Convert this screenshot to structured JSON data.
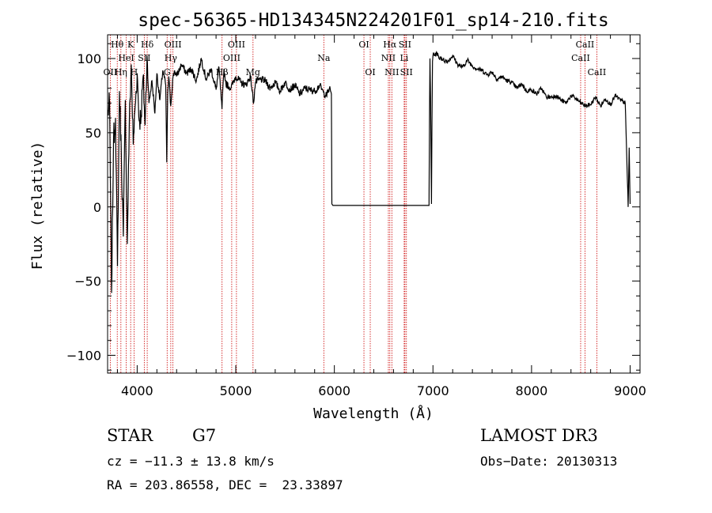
{
  "chart_data": {
    "type": "line",
    "title": "spec-56365-HD134345N224201F01_sp14-210.fits",
    "xlabel": "Wavelength (Å)",
    "ylabel": "Flux (relative)",
    "xlim": [
      3700,
      9100
    ],
    "ylim": [
      -112,
      116
    ],
    "xticks": [
      4000,
      5000,
      6000,
      7000,
      8000,
      9000
    ],
    "yticks": [
      -100,
      -50,
      0,
      50,
      100
    ],
    "series": [
      {
        "name": "flux",
        "x": [
          3700,
          3720,
          3740,
          3760,
          3780,
          3800,
          3820,
          3840,
          3860,
          3880,
          3900,
          3920,
          3940,
          3960,
          3980,
          4000,
          4020,
          4040,
          4060,
          4080,
          4100,
          4120,
          4150,
          4180,
          4200,
          4230,
          4260,
          4290,
          4300,
          4310,
          4320,
          4340,
          4360,
          4380,
          4400,
          4450,
          4500,
          4550,
          4600,
          4650,
          4700,
          4750,
          4800,
          4830,
          4860,
          4880,
          4900,
          4950,
          5000,
          5050,
          5100,
          5150,
          5180,
          5200,
          5250,
          5300,
          5350,
          5400,
          5450,
          5500,
          5550,
          5600,
          5650,
          5700,
          5750,
          5800,
          5850,
          5890,
          5920,
          5950,
          5970,
          5975,
          5985,
          6000,
          6100,
          6200,
          6300,
          6400,
          6500,
          6600,
          6700,
          6800,
          6900,
          6960,
          6965,
          6970,
          6975,
          6985,
          6990,
          6995,
          7000,
          7005,
          7010,
          7020,
          7040,
          7060,
          7080,
          7100,
          7150,
          7200,
          7250,
          7300,
          7350,
          7400,
          7450,
          7500,
          7550,
          7600,
          7650,
          7700,
          7750,
          7800,
          7850,
          7900,
          7950,
          8000,
          8050,
          8100,
          8150,
          8200,
          8250,
          8300,
          8350,
          8400,
          8450,
          8500,
          8550,
          8600,
          8650,
          8700,
          8750,
          8800,
          8850,
          8900,
          8950,
          8980,
          8990,
          9000
        ],
        "y": [
          62,
          70,
          -58,
          45,
          60,
          -40,
          78,
          35,
          -20,
          72,
          -25,
          55,
          96,
          42,
          68,
          90,
          58,
          62,
          88,
          55,
          102,
          70,
          85,
          63,
          90,
          72,
          92,
          82,
          30,
          76,
          88,
          68,
          86,
          92,
          88,
          96,
          90,
          93,
          85,
          100,
          86,
          93,
          79,
          94,
          66,
          93,
          83,
          80,
          88,
          84,
          82,
          88,
          70,
          84,
          86,
          85,
          80,
          84,
          78,
          84,
          79,
          82,
          76,
          80,
          79,
          78,
          82,
          77,
          75,
          80,
          76,
          2,
          1,
          1,
          1,
          1,
          1,
          1,
          1,
          1,
          1,
          1,
          1,
          1,
          60,
          100,
          75,
          2,
          55,
          98,
          102,
          104,
          103,
          102,
          104,
          100,
          101,
          99,
          98,
          102,
          96,
          94,
          99,
          95,
          93,
          92,
          89,
          91,
          86,
          88,
          85,
          84,
          80,
          83,
          78,
          79,
          76,
          80,
          74,
          74,
          75,
          72,
          70,
          75,
          73,
          70,
          68,
          69,
          74,
          68,
          73,
          69,
          75,
          72,
          70,
          0,
          40,
          2
        ]
      }
    ],
    "lines": [
      {
        "label": "OII",
        "wl": 3727,
        "row": 3
      },
      {
        "label": "Hθ",
        "wl": 3798,
        "row": 1
      },
      {
        "label": "Hη",
        "wl": 3835,
        "row": 3
      },
      {
        "label": "HeI",
        "wl": 3889,
        "row": 2
      },
      {
        "label": "K",
        "wl": 3934,
        "row": 1
      },
      {
        "label": "H",
        "wl": 3968,
        "row": 3
      },
      {
        "label": "Hδ",
        "wl": 4102,
        "row": 1
      },
      {
        "label": "SII",
        "wl": 4072,
        "row": 2
      },
      {
        "label": "OIII",
        "wl": 4363,
        "row": 1
      },
      {
        "label": "Hγ",
        "wl": 4341,
        "row": 2
      },
      {
        "label": "G",
        "wl": 4304,
        "row": 3
      },
      {
        "label": "Hβ",
        "wl": 4861,
        "row": 3
      },
      {
        "label": "OIII",
        "wl": 4959,
        "row": 2
      },
      {
        "label": "OIII",
        "wl": 5007,
        "row": 1
      },
      {
        "label": "Mg",
        "wl": 5175,
        "row": 3
      },
      {
        "label": "Na",
        "wl": 5893,
        "row": 2
      },
      {
        "label": "OI",
        "wl": 6300,
        "row": 1
      },
      {
        "label": "OI",
        "wl": 6364,
        "row": 3
      },
      {
        "label": "NII",
        "wl": 6548,
        "row": 2
      },
      {
        "label": "Hα",
        "wl": 6563,
        "row": 1
      },
      {
        "label": "NII",
        "wl": 6583,
        "row": 3
      },
      {
        "label": "Li",
        "wl": 6708,
        "row": 2
      },
      {
        "label": "SII",
        "wl": 6716,
        "row": 1
      },
      {
        "label": "SII",
        "wl": 6731,
        "row": 3
      },
      {
        "label": "CaII",
        "wl": 8498,
        "row": 2
      },
      {
        "label": "CaII",
        "wl": 8542,
        "row": 1
      },
      {
        "label": "CaII",
        "wl": 8662,
        "row": 3
      }
    ]
  },
  "info": {
    "object_class": "STAR",
    "subclass": "G7",
    "survey": "LAMOST DR3",
    "cz": "cz = −11.3 ± 13.8 km/s",
    "obs_date": "Obs−Date: 20130313",
    "coords": "RA = 203.86558, DEC =  23.33897"
  },
  "colors": {
    "line_marker": "#cc0000",
    "spectrum": "#000000"
  }
}
